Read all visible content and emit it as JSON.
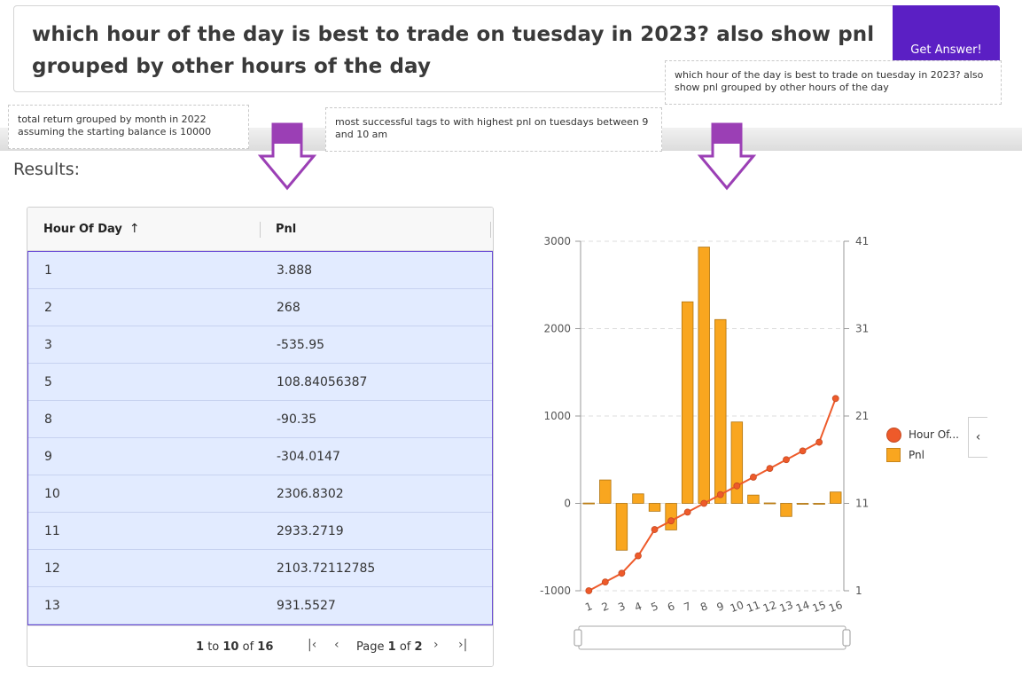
{
  "query": {
    "text": "which hour of the day is best to trade on tuesday in 2023? also show pnl grouped by other hours of the day",
    "button_label": "Get Answer!"
  },
  "suggestions": [
    "total return grouped by month in 2022 assuming the starting balance is 10000",
    "most successful tags to with highest pnl on tuesdays between 9 and 10 am",
    "which hour of the day is best to trade on tuesday in 2023? also show pnl grouped by other hours of the day"
  ],
  "results_title": "Results:",
  "grid": {
    "columns": [
      "Hour Of Day",
      "Pnl"
    ],
    "sort_icon": "↑",
    "rows": [
      {
        "hour": "1",
        "pnl": "3.888"
      },
      {
        "hour": "2",
        "pnl": "268"
      },
      {
        "hour": "3",
        "pnl": "-535.95"
      },
      {
        "hour": "5",
        "pnl": "108.84056387"
      },
      {
        "hour": "8",
        "pnl": "-90.35"
      },
      {
        "hour": "9",
        "pnl": "-304.0147"
      },
      {
        "hour": "10",
        "pnl": "2306.8302"
      },
      {
        "hour": "11",
        "pnl": "2933.2719"
      },
      {
        "hour": "12",
        "pnl": "2103.72112785"
      },
      {
        "hour": "13",
        "pnl": "931.5527"
      }
    ],
    "footer": {
      "range_from": "1",
      "range_to": "10",
      "range_total": "16",
      "to_word": "to",
      "of_word": "of",
      "page_word": "Page",
      "page_current": "1",
      "page_total": "2"
    }
  },
  "chart_data": {
    "type": "bar",
    "categories": [
      "1",
      "2",
      "3",
      "4",
      "5",
      "6",
      "7",
      "8",
      "9",
      "10",
      "11",
      "12",
      "13",
      "14",
      "15",
      "16"
    ],
    "series": [
      {
        "name": "Pnl",
        "type": "bar",
        "axis": "left",
        "values": [
          3.888,
          268,
          -535.95,
          108.84,
          -90.35,
          -304.01,
          2306.83,
          2933.27,
          2103.72,
          931.55,
          95,
          5,
          -150,
          0,
          -10,
          130
        ],
        "color": "#f9a61f"
      },
      {
        "name": "Hour Of...",
        "type": "line",
        "axis": "right",
        "values": [
          1,
          2,
          3,
          5,
          8,
          9,
          10,
          11,
          12,
          13,
          14,
          15,
          16,
          17,
          18,
          23
        ],
        "color": "#ee5a2a"
      }
    ],
    "left_ticks": [
      "3000",
      "2000",
      "1000",
      "0",
      "-1000"
    ],
    "right_ticks": [
      "41",
      "31",
      "21",
      "11",
      "1"
    ],
    "ylim_left": [
      -1000,
      3000
    ],
    "ylim_right": [
      1,
      41
    ],
    "grid": true,
    "legend": "right"
  },
  "colors": {
    "accent": "#5b1fc4",
    "arrow": "#9b3fb5",
    "row_bg": "#e2ebff",
    "bar": "#f9a61f",
    "line": "#ee5a2a"
  }
}
